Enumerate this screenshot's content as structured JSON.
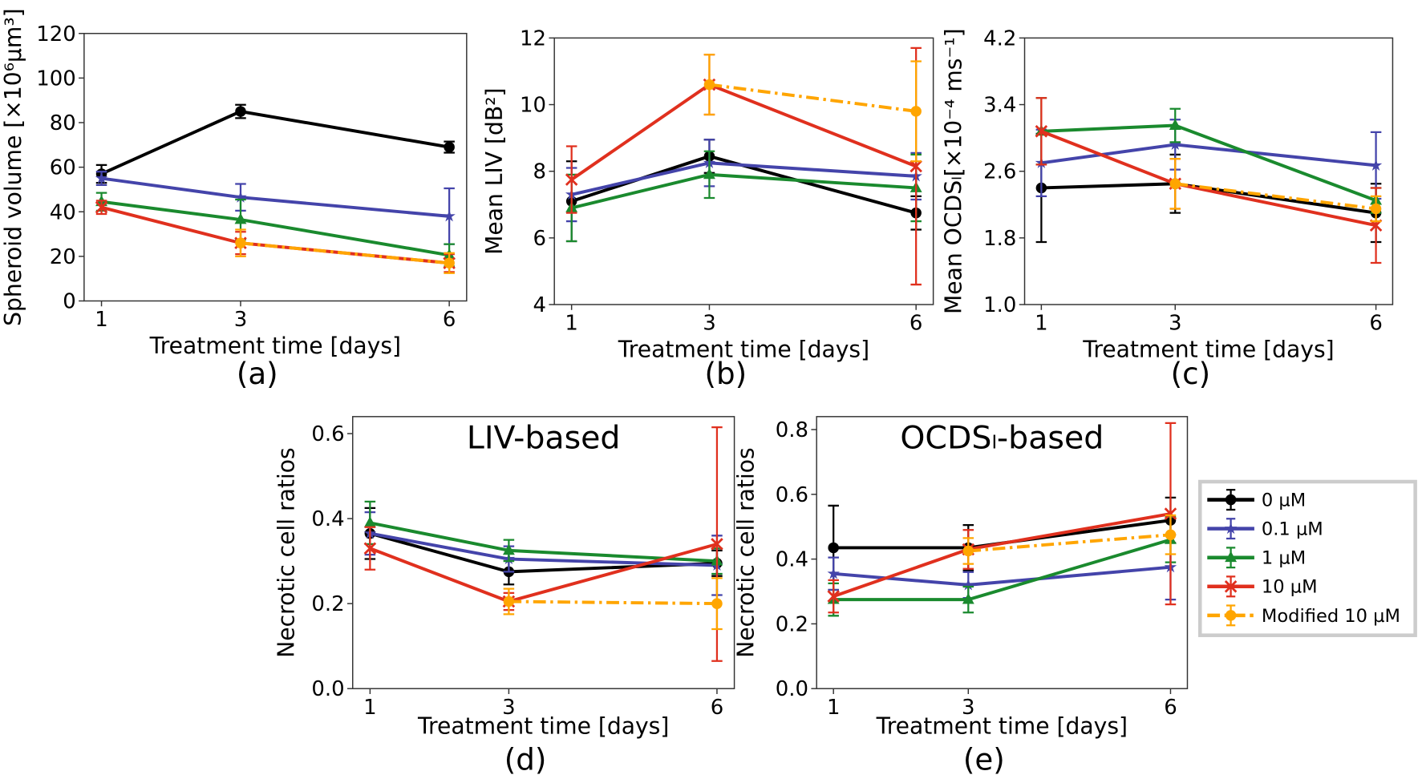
{
  "chart_data": [
    {
      "type": "line",
      "panel_label": "(a)",
      "title": "",
      "xlabel": "Treatment time [days]",
      "ylabel": "Spheroid volume [×10⁶µm³]",
      "x_ticks": [
        1,
        3,
        6
      ],
      "y_ticks": [
        "0",
        "20",
        "40",
        "60",
        "80",
        "100",
        "120"
      ],
      "xlim": [
        0.75,
        6.25
      ],
      "ylim": [
        0,
        120
      ],
      "series": [
        {
          "name": "0 µM",
          "x": [
            1,
            3,
            6
          ],
          "y": [
            57,
            85,
            69
          ],
          "err": [
            4,
            3,
            2.5
          ]
        },
        {
          "name": "0.1 µM",
          "x": [
            1,
            3,
            6
          ],
          "y": [
            55,
            46.5,
            38
          ],
          "err": [
            3,
            6,
            12.5
          ]
        },
        {
          "name": "1 µM",
          "x": [
            1,
            3,
            6
          ],
          "y": [
            44.5,
            36.5,
            20.5
          ],
          "err": [
            4,
            9,
            5
          ]
        },
        {
          "name": "10 µM",
          "x": [
            1,
            3,
            6
          ],
          "y": [
            42,
            26,
            17
          ],
          "err": [
            3,
            5,
            4
          ]
        },
        {
          "name": "Modified 10 µM",
          "x": [
            3,
            6
          ],
          "y": [
            26,
            17
          ],
          "err": [
            6,
            4.5
          ]
        }
      ]
    },
    {
      "type": "line",
      "panel_label": "(b)",
      "title": "",
      "xlabel": "Treatment time [days]",
      "ylabel": "Mean LIV [dB²]",
      "x_ticks": [
        1,
        3,
        6
      ],
      "y_ticks": [
        "4",
        "6",
        "8",
        "10",
        "12"
      ],
      "xlim": [
        0.75,
        6.25
      ],
      "ylim": [
        4,
        12
      ],
      "series": [
        {
          "name": "0 µM",
          "x": [
            1,
            3,
            6
          ],
          "y": [
            7.1,
            8.45,
            6.75
          ],
          "err": [
            1.2,
            0.5,
            0.5
          ]
        },
        {
          "name": "0.1 µM",
          "x": [
            1,
            3,
            6
          ],
          "y": [
            7.3,
            8.25,
            7.85
          ],
          "err": [
            0.8,
            0.7,
            0.7
          ]
        },
        {
          "name": "1 µM",
          "x": [
            1,
            3,
            6
          ],
          "y": [
            6.9,
            7.9,
            7.5
          ],
          "err": [
            1.0,
            0.7,
            1.0
          ]
        },
        {
          "name": "10 µM",
          "x": [
            1,
            3,
            6
          ],
          "y": [
            7.75,
            10.6,
            8.15
          ],
          "err": [
            1.0,
            0.9,
            3.55
          ]
        },
        {
          "name": "Modified 10 µM",
          "x": [
            3,
            6
          ],
          "y": [
            10.6,
            9.8
          ],
          "err": [
            0.9,
            1.5
          ]
        }
      ]
    },
    {
      "type": "line",
      "panel_label": "(c)",
      "title": "",
      "xlabel": "Treatment time [days]",
      "ylabel": "Mean OCDSₗ[×10⁻⁴ ms⁻¹]",
      "x_ticks": [
        1,
        3,
        6
      ],
      "y_ticks": [
        "1.0",
        "1.8",
        "2.6",
        "3.4",
        "4.2"
      ],
      "xlim": [
        0.75,
        6.25
      ],
      "ylim": [
        1.0,
        4.2
      ],
      "series": [
        {
          "name": "0 µM",
          "x": [
            1,
            3,
            6
          ],
          "y": [
            2.4,
            2.45,
            2.1
          ],
          "err": [
            0.65,
            0.35,
            0.35
          ]
        },
        {
          "name": "0.1 µM",
          "x": [
            1,
            3,
            6
          ],
          "y": [
            2.7,
            2.92,
            2.67
          ],
          "err": [
            0.4,
            0.3,
            0.4
          ]
        },
        {
          "name": "1 µM",
          "x": [
            1,
            3,
            6
          ],
          "y": [
            3.08,
            3.15,
            2.25
          ],
          "err": [
            0.4,
            0.2,
            0.15
          ]
        },
        {
          "name": "10 µM",
          "x": [
            1,
            3,
            6
          ],
          "y": [
            3.08,
            2.45,
            1.95
          ],
          "err": [
            0.4,
            0.3,
            0.45
          ]
        },
        {
          "name": "Modified 10 µM",
          "x": [
            3,
            6
          ],
          "y": [
            2.45,
            2.15
          ],
          "err": [
            0.3,
            0.15
          ]
        }
      ]
    },
    {
      "type": "line",
      "panel_label": "(d)",
      "title": "LIV-based",
      "xlabel": "Treatment time [days]",
      "ylabel": "Necrotic cell ratios",
      "x_ticks": [
        1,
        3,
        6
      ],
      "y_ticks": [
        "0.0",
        "0.2",
        "0.4",
        "0.6"
      ],
      "xlim": [
        0.75,
        6.25
      ],
      "ylim": [
        0,
        0.64
      ],
      "series": [
        {
          "name": "0 µM",
          "x": [
            1,
            3,
            6
          ],
          "y": [
            0.365,
            0.275,
            0.295
          ],
          "err": [
            0.06,
            0.03,
            0.03
          ]
        },
        {
          "name": "0.1 µM",
          "x": [
            1,
            3,
            6
          ],
          "y": [
            0.365,
            0.305,
            0.29
          ],
          "err": [
            0.05,
            0.03,
            0.07
          ]
        },
        {
          "name": "1 µM",
          "x": [
            1,
            3,
            6
          ],
          "y": [
            0.39,
            0.325,
            0.3
          ],
          "err": [
            0.05,
            0.025,
            0.03
          ]
        },
        {
          "name": "10 µM",
          "x": [
            1,
            3,
            6
          ],
          "y": [
            0.33,
            0.205,
            0.34
          ],
          "err": [
            0.05,
            0.02,
            0.275
          ]
        },
        {
          "name": "Modified 10 µM",
          "x": [
            3,
            6
          ],
          "y": [
            0.205,
            0.2
          ],
          "err": [
            0.03,
            0.06
          ]
        }
      ]
    },
    {
      "type": "line",
      "panel_label": "(e)",
      "title": "OCDSₗ-based",
      "xlabel": "Treatment time [days]",
      "ylabel": "Necrotic cell ratios",
      "x_ticks": [
        1,
        3,
        6
      ],
      "y_ticks": [
        "0.0",
        "0.2",
        "0.4",
        "0.6",
        "0.8"
      ],
      "xlim": [
        0.75,
        6.25
      ],
      "ylim": [
        0,
        0.84
      ],
      "series": [
        {
          "name": "0 µM",
          "x": [
            1,
            3,
            6
          ],
          "y": [
            0.435,
            0.435,
            0.52
          ],
          "err": [
            0.13,
            0.07,
            0.07
          ]
        },
        {
          "name": "0.1 µM",
          "x": [
            1,
            3,
            6
          ],
          "y": [
            0.355,
            0.32,
            0.375
          ],
          "err": [
            0.05,
            0.04,
            0.1
          ]
        },
        {
          "name": "1 µM",
          "x": [
            1,
            3,
            6
          ],
          "y": [
            0.275,
            0.275,
            0.46
          ],
          "err": [
            0.05,
            0.04,
            0.07
          ]
        },
        {
          "name": "10 µM",
          "x": [
            1,
            3,
            6
          ],
          "y": [
            0.285,
            0.43,
            0.54
          ],
          "err": [
            0.05,
            0.06,
            0.28
          ]
        },
        {
          "name": "Modified 10 µM",
          "x": [
            3,
            6
          ],
          "y": [
            0.425,
            0.475
          ],
          "err": [
            0.04,
            0.06
          ]
        }
      ]
    }
  ],
  "legend": {
    "placement": "right of panel (e)",
    "entries": [
      {
        "label": "0 µM",
        "color": "#000000",
        "marker": "circle",
        "dash": "solid"
      },
      {
        "label": "0.1 µM",
        "color": "#4444aa",
        "marker": "star",
        "dash": "solid"
      },
      {
        "label": "1 µM",
        "color": "#1a8a2e",
        "marker": "triangle",
        "dash": "solid"
      },
      {
        "label": "10 µM",
        "color": "#e0301e",
        "marker": "x",
        "dash": "solid"
      },
      {
        "label": "Modified 10 µM",
        "color": "#ffa500",
        "marker": "circle",
        "dash": "dashdot"
      }
    ]
  }
}
